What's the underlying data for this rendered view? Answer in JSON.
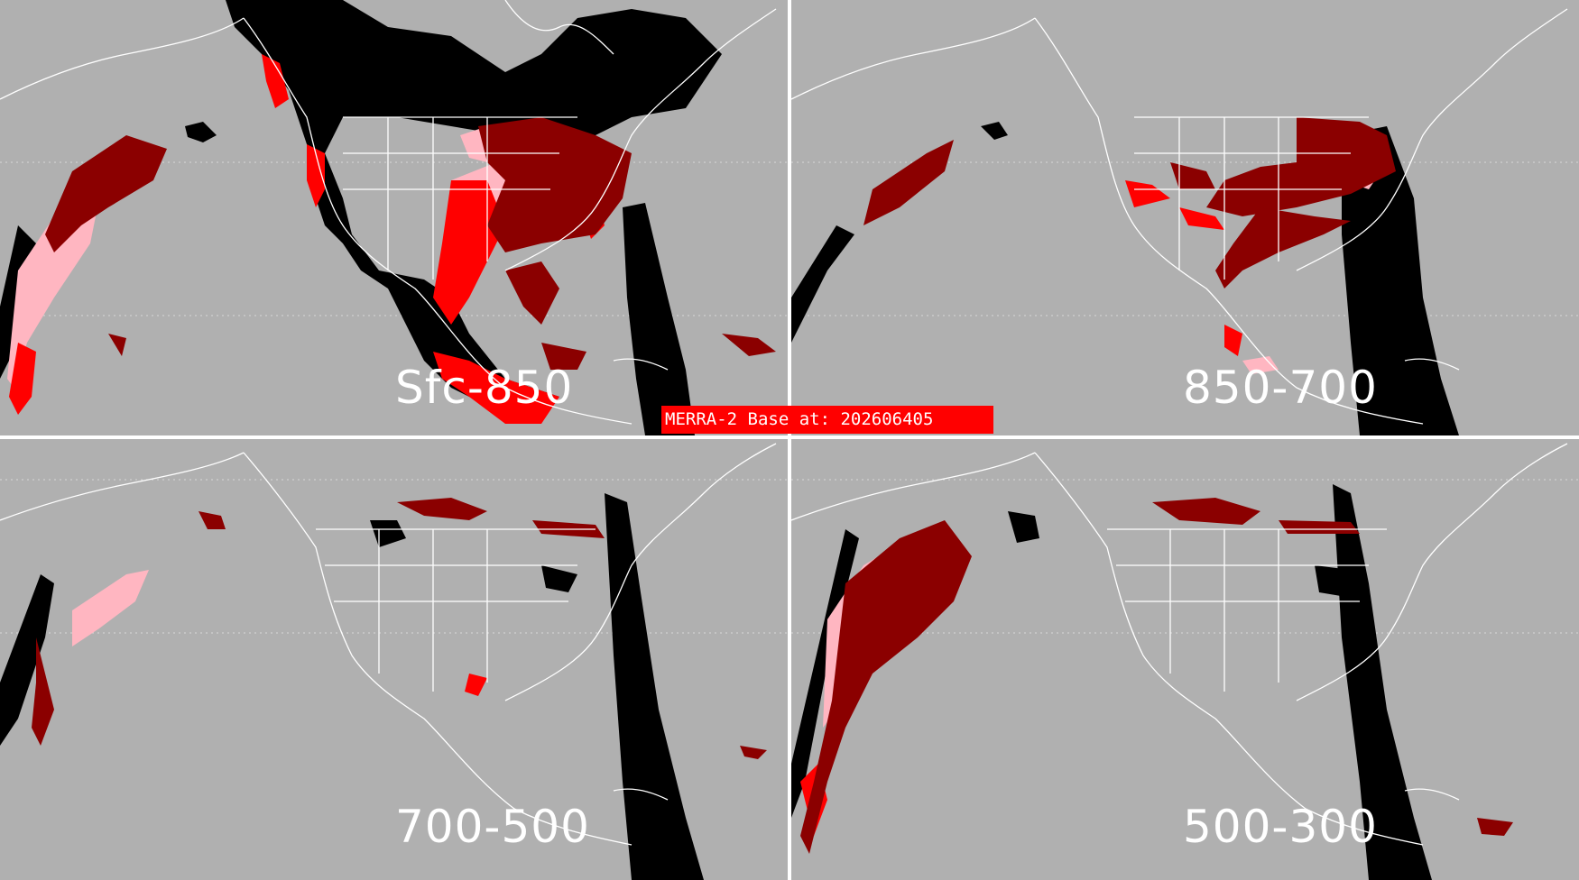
{
  "source": "MERRA-2 Base at: 202606405",
  "colors": {
    "background": "#b0b0b0",
    "coastline": "#ffffff",
    "no_data": "#000000",
    "high": "#8b0000",
    "medium": "#ff0000",
    "low": "#ffb6c1",
    "banner": "#ff0000"
  },
  "panels": [
    {
      "label": "Sfc-850"
    },
    {
      "label": "850-700"
    },
    {
      "label": "700-500"
    },
    {
      "label": "500-300"
    }
  ]
}
